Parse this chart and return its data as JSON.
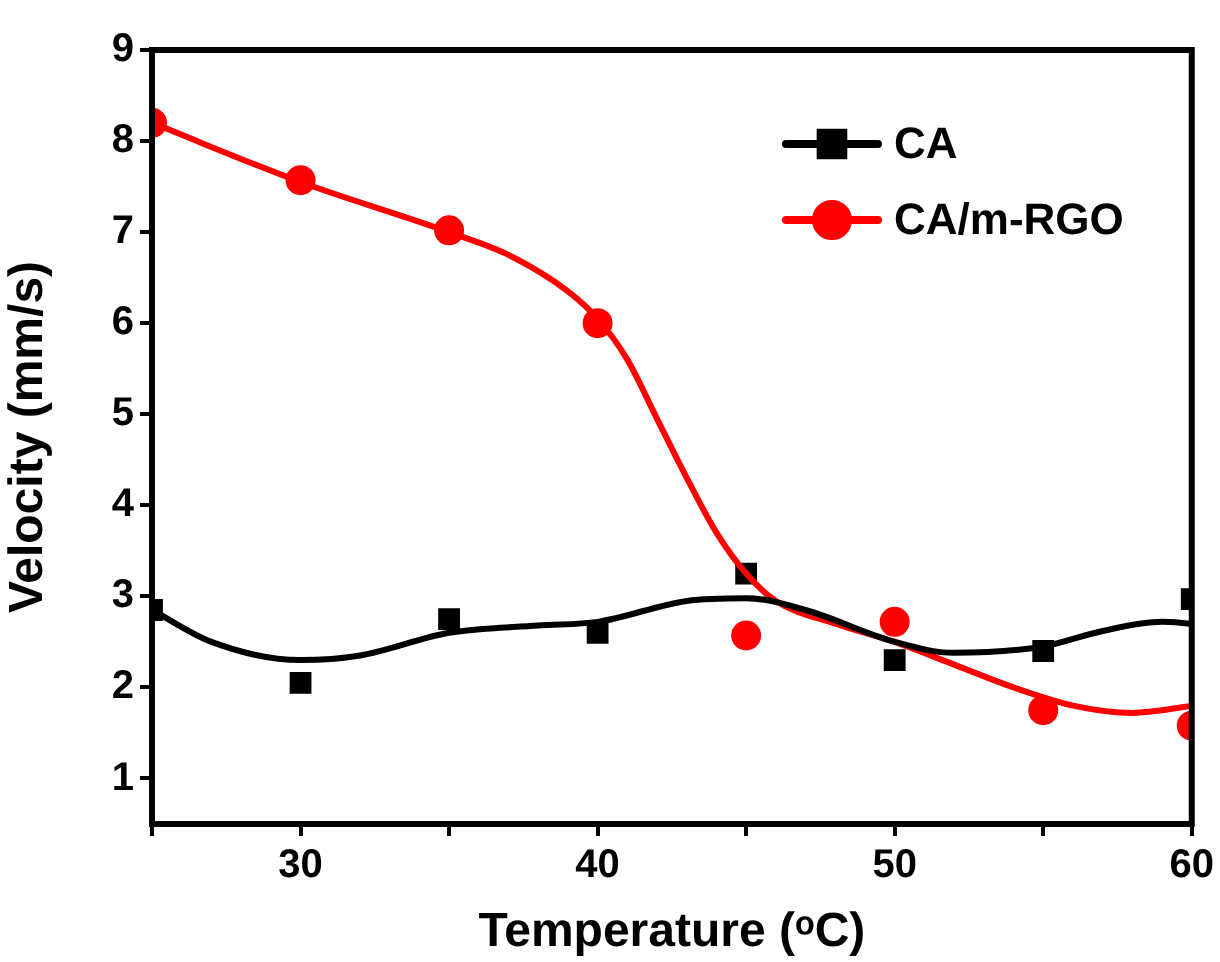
{
  "chart_data": {
    "type": "scatter",
    "xlabel": "Temperature (ᵒC)",
    "ylabel": "Velocity (mm/s)",
    "xlim": [
      25,
      60
    ],
    "xticks": [
      {
        "value": 25,
        "label": null
      },
      30,
      {
        "value": 35,
        "label": null
      },
      40,
      {
        "value": 45,
        "label": null
      },
      50,
      {
        "value": 55,
        "label": null
      },
      60
    ],
    "ylim": [
      0.5,
      9
    ],
    "yticks": [
      1,
      2,
      3,
      4,
      5,
      6,
      7,
      8,
      9
    ],
    "grid": false,
    "legend": "top right",
    "series": [
      {
        "type": "line",
        "color": "#000000",
        "marker": "none",
        "x": [
          25,
          27,
          30,
          32,
          35,
          38,
          40,
          43,
          45,
          47,
          50,
          52,
          55,
          57,
          59,
          60
        ],
        "values": [
          2.85,
          2.5,
          2.3,
          2.35,
          2.6,
          2.68,
          2.72,
          2.95,
          2.98,
          2.85,
          2.5,
          2.38,
          2.45,
          2.62,
          2.72,
          2.7
        ]
      },
      {
        "type": "line",
        "color": "#ff0000",
        "marker": "none",
        "x": [
          25,
          30,
          35,
          37,
          39,
          40,
          41,
          42,
          43,
          44,
          45,
          46,
          48,
          50,
          52,
          54,
          56,
          58,
          59,
          60
        ],
        "values": [
          8.2,
          7.55,
          7.0,
          6.75,
          6.35,
          6.05,
          5.6,
          4.95,
          4.3,
          3.7,
          3.25,
          2.95,
          2.7,
          2.5,
          2.25,
          2.0,
          1.8,
          1.72,
          1.75,
          1.8
        ]
      },
      {
        "type": "scatter",
        "name": "CA",
        "color": "#000000",
        "marker": "square",
        "x": [
          25,
          30,
          35,
          40,
          45,
          50,
          55,
          60
        ],
        "values": [
          2.85,
          2.05,
          2.75,
          2.6,
          3.25,
          2.3,
          2.4,
          2.97
        ]
      },
      {
        "type": "scatter",
        "name": "CA/m-RGO",
        "color": "#ff0000",
        "marker": "circle",
        "x": [
          25,
          30,
          35,
          40,
          45,
          50,
          55,
          60
        ],
        "values": [
          8.2,
          7.57,
          7.02,
          6.0,
          2.57,
          2.72,
          1.75,
          1.58
        ]
      }
    ]
  }
}
